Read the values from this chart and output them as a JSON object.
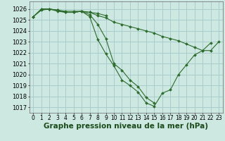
{
  "background_color": "#cce8e0",
  "grid_color": "#aacccc",
  "line_color": "#2d6b2d",
  "marker_color": "#2d6b2d",
  "xlabel": "Graphe pression niveau de la mer (hPa)",
  "xlabel_fontsize": 7.5,
  "tick_fontsize": 6,
  "ylim": [
    1016.5,
    1026.7
  ],
  "xlim": [
    -0.5,
    23.5
  ],
  "yticks": [
    1017,
    1018,
    1019,
    1020,
    1021,
    1022,
    1023,
    1024,
    1025,
    1026
  ],
  "xticks": [
    0,
    1,
    2,
    3,
    4,
    5,
    6,
    7,
    8,
    9,
    10,
    11,
    12,
    13,
    14,
    15,
    16,
    17,
    18,
    19,
    20,
    21,
    22,
    23
  ],
  "lines": [
    {
      "x": [
        0,
        1,
        2,
        3,
        4,
        5,
        6,
        7,
        8,
        9,
        10,
        11,
        12,
        13,
        14,
        15,
        16,
        17,
        18,
        19,
        20,
        21,
        22,
        23
      ],
      "y": [
        1025.3,
        1025.9,
        1026.0,
        1025.9,
        1025.7,
        1025.7,
        1025.8,
        1025.7,
        1025.4,
        1025.2,
        1024.8,
        1024.6,
        1024.4,
        1024.2,
        1024.0,
        1023.8,
        1023.5,
        1023.3,
        1023.1,
        1022.8,
        1022.5,
        1022.2,
        1022.2,
        1023.0
      ]
    },
    {
      "x": [
        0,
        1,
        2,
        3,
        4,
        5,
        6,
        7,
        8,
        9,
        10,
        11,
        12,
        13,
        14,
        15,
        16,
        17,
        18,
        19,
        20,
        21,
        22
      ],
      "y": [
        1025.3,
        1026.0,
        1026.0,
        1025.9,
        1025.7,
        1025.7,
        1025.8,
        1025.3,
        1023.2,
        1021.9,
        1020.8,
        1019.5,
        1019.0,
        1018.4,
        1017.4,
        1017.1,
        1018.3,
        1018.6,
        1020.0,
        1020.9,
        1021.8,
        1022.2,
        1022.9
      ]
    },
    {
      "x": [
        1,
        2,
        3,
        4,
        5,
        6,
        7,
        8,
        9,
        10,
        11,
        12,
        13,
        14,
        15
      ],
      "y": [
        1026.0,
        1026.0,
        1025.8,
        1025.7,
        1025.7,
        1025.8,
        1025.5,
        1024.6,
        1023.3,
        1021.0,
        1020.4,
        1019.5,
        1018.9,
        1017.9,
        1017.4
      ]
    },
    {
      "x": [
        0,
        1,
        2,
        3,
        4,
        5,
        6,
        7,
        8,
        9
      ],
      "y": [
        1025.3,
        1026.0,
        1026.0,
        1025.9,
        1025.8,
        1025.8,
        1025.8,
        1025.7,
        1025.6,
        1025.4
      ]
    }
  ]
}
